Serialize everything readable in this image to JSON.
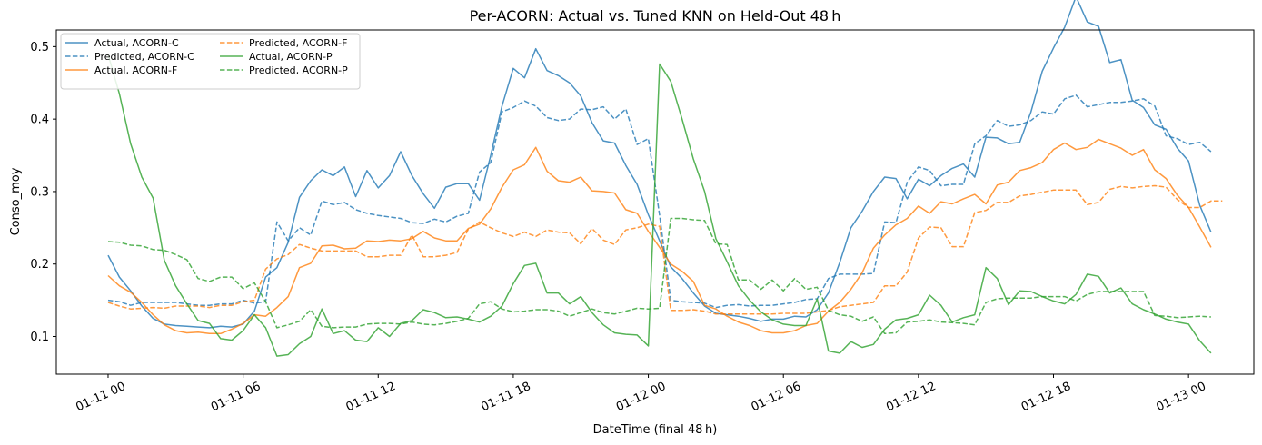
{
  "chart_data": {
    "type": "line",
    "title": "Per-ACORN: Actual vs. Tuned KNN on Held-Out 48 h",
    "xlabel": "DateTime (final 48 h)",
    "ylabel": "Conso_moy",
    "x_unit": "hours",
    "x_range": [
      -2.3,
      50.9
    ],
    "ylim": [
      0.048,
      0.523
    ],
    "x_ticks": [
      {
        "value": 0,
        "label": "01-11 00"
      },
      {
        "value": 6,
        "label": "01-11 06"
      },
      {
        "value": 12,
        "label": "01-11 12"
      },
      {
        "value": 18,
        "label": "01-11 18"
      },
      {
        "value": 24,
        "label": "01-12 00"
      },
      {
        "value": 30,
        "label": "01-12 06"
      },
      {
        "value": 36,
        "label": "01-12 12"
      },
      {
        "value": 42,
        "label": "01-12 18"
      },
      {
        "value": 48,
        "label": "01-13 00"
      }
    ],
    "y_ticks": [
      0.1,
      0.2,
      0.3,
      0.4,
      0.5
    ],
    "y_tick_labels": [
      "0.1",
      "0.2",
      "0.3",
      "0.4",
      "0.5"
    ],
    "grid": false,
    "legend": {
      "position": "top-left",
      "columns": 2
    },
    "x_step_hours": 0.5,
    "series": [
      {
        "name": "Actual, ACORN-C",
        "color": "#1f77b4",
        "style": "solid",
        "values": [
          0.212,
          0.182,
          0.163,
          0.142,
          0.125,
          0.117,
          0.115,
          0.114,
          0.113,
          0.112,
          0.114,
          0.113,
          0.117,
          0.135,
          0.182,
          0.195,
          0.23,
          0.292,
          0.315,
          0.33,
          0.322,
          0.334,
          0.293,
          0.329,
          0.305,
          0.322,
          0.355,
          0.322,
          0.297,
          0.277,
          0.306,
          0.311,
          0.311,
          0.288,
          0.35,
          0.418,
          0.47,
          0.457,
          0.497,
          0.467,
          0.46,
          0.45,
          0.432,
          0.395,
          0.37,
          0.367,
          0.336,
          0.31,
          0.268,
          0.232,
          0.196,
          0.18,
          0.16,
          0.142,
          0.132,
          0.13,
          0.128,
          0.125,
          0.121,
          0.124,
          0.124,
          0.128,
          0.127,
          0.137,
          0.16,
          0.202,
          0.25,
          0.273,
          0.3,
          0.32,
          0.318,
          0.29,
          0.317,
          0.308,
          0.322,
          0.332,
          0.338,
          0.32,
          0.375,
          0.374,
          0.366,
          0.368,
          0.41,
          0.466,
          0.498,
          0.527,
          0.569,
          0.534,
          0.528,
          0.478,
          0.482,
          0.426,
          0.416,
          0.392,
          0.386,
          0.36,
          0.342,
          0.281,
          0.244
        ]
      },
      {
        "name": "Predicted, ACORN-C",
        "color": "#1f77b4",
        "style": "dashed",
        "values": [
          0.15,
          0.148,
          0.143,
          0.147,
          0.147,
          0.147,
          0.147,
          0.145,
          0.143,
          0.143,
          0.145,
          0.145,
          0.15,
          0.146,
          0.148,
          0.258,
          0.232,
          0.25,
          0.24,
          0.287,
          0.282,
          0.285,
          0.275,
          0.27,
          0.267,
          0.265,
          0.263,
          0.257,
          0.256,
          0.262,
          0.258,
          0.266,
          0.27,
          0.327,
          0.34,
          0.41,
          0.416,
          0.425,
          0.418,
          0.402,
          0.398,
          0.4,
          0.414,
          0.413,
          0.417,
          0.4,
          0.414,
          0.365,
          0.373,
          0.267,
          0.15,
          0.148,
          0.147,
          0.146,
          0.14,
          0.143,
          0.144,
          0.142,
          0.143,
          0.143,
          0.145,
          0.147,
          0.151,
          0.152,
          0.18,
          0.186,
          0.186,
          0.186,
          0.187,
          0.258,
          0.257,
          0.313,
          0.334,
          0.329,
          0.308,
          0.31,
          0.31,
          0.366,
          0.377,
          0.398,
          0.39,
          0.392,
          0.398,
          0.41,
          0.407,
          0.428,
          0.433,
          0.417,
          0.42,
          0.423,
          0.423,
          0.425,
          0.428,
          0.418,
          0.377,
          0.373,
          0.365,
          0.368,
          0.355
        ]
      },
      {
        "name": "Actual, ACORN-F",
        "color": "#ff7f0e",
        "style": "solid",
        "values": [
          0.184,
          0.17,
          0.161,
          0.147,
          0.13,
          0.116,
          0.108,
          0.105,
          0.106,
          0.104,
          0.104,
          0.11,
          0.118,
          0.13,
          0.128,
          0.14,
          0.155,
          0.195,
          0.201,
          0.225,
          0.226,
          0.221,
          0.222,
          0.232,
          0.231,
          0.233,
          0.232,
          0.235,
          0.245,
          0.236,
          0.232,
          0.232,
          0.249,
          0.255,
          0.276,
          0.306,
          0.33,
          0.337,
          0.361,
          0.328,
          0.315,
          0.313,
          0.32,
          0.301,
          0.3,
          0.298,
          0.275,
          0.27,
          0.245,
          0.223,
          0.2,
          0.19,
          0.176,
          0.143,
          0.138,
          0.128,
          0.12,
          0.115,
          0.108,
          0.105,
          0.105,
          0.108,
          0.115,
          0.118,
          0.135,
          0.147,
          0.165,
          0.188,
          0.222,
          0.24,
          0.254,
          0.263,
          0.28,
          0.27,
          0.286,
          0.283,
          0.29,
          0.296,
          0.283,
          0.309,
          0.313,
          0.329,
          0.333,
          0.34,
          0.358,
          0.367,
          0.358,
          0.361,
          0.372,
          0.366,
          0.36,
          0.35,
          0.358,
          0.33,
          0.318,
          0.295,
          0.278,
          0.251,
          0.223
        ]
      },
      {
        "name": "Predicted, ACORN-F",
        "color": "#ff7f0e",
        "style": "dashed",
        "values": [
          0.147,
          0.142,
          0.138,
          0.139,
          0.14,
          0.139,
          0.142,
          0.142,
          0.142,
          0.14,
          0.143,
          0.143,
          0.148,
          0.15,
          0.193,
          0.207,
          0.213,
          0.227,
          0.222,
          0.218,
          0.218,
          0.218,
          0.218,
          0.21,
          0.21,
          0.212,
          0.212,
          0.24,
          0.21,
          0.21,
          0.212,
          0.216,
          0.248,
          0.258,
          0.25,
          0.243,
          0.238,
          0.244,
          0.238,
          0.247,
          0.244,
          0.243,
          0.228,
          0.249,
          0.233,
          0.227,
          0.247,
          0.25,
          0.255,
          0.252,
          0.136,
          0.136,
          0.137,
          0.135,
          0.131,
          0.131,
          0.131,
          0.131,
          0.131,
          0.131,
          0.132,
          0.132,
          0.132,
          0.134,
          0.136,
          0.141,
          0.143,
          0.145,
          0.147,
          0.17,
          0.17,
          0.189,
          0.236,
          0.251,
          0.25,
          0.224,
          0.224,
          0.271,
          0.274,
          0.285,
          0.285,
          0.294,
          0.296,
          0.299,
          0.302,
          0.302,
          0.302,
          0.282,
          0.285,
          0.303,
          0.307,
          0.305,
          0.307,
          0.308,
          0.306,
          0.289,
          0.278,
          0.278,
          0.287,
          0.287
        ]
      },
      {
        "name": "Actual, ACORN-P",
        "color": "#2ca02c",
        "style": "solid",
        "values": [
          0.489,
          0.435,
          0.366,
          0.32,
          0.291,
          0.205,
          0.17,
          0.145,
          0.122,
          0.118,
          0.097,
          0.095,
          0.108,
          0.13,
          0.112,
          0.073,
          0.075,
          0.09,
          0.1,
          0.138,
          0.104,
          0.108,
          0.095,
          0.093,
          0.112,
          0.1,
          0.118,
          0.122,
          0.137,
          0.133,
          0.126,
          0.127,
          0.124,
          0.12,
          0.128,
          0.142,
          0.173,
          0.198,
          0.201,
          0.16,
          0.16,
          0.145,
          0.155,
          0.133,
          0.116,
          0.105,
          0.103,
          0.102,
          0.087,
          0.476,
          0.452,
          0.4,
          0.345,
          0.3,
          0.235,
          0.203,
          0.17,
          0.15,
          0.134,
          0.123,
          0.117,
          0.115,
          0.115,
          0.152,
          0.08,
          0.077,
          0.093,
          0.085,
          0.089,
          0.11,
          0.123,
          0.125,
          0.13,
          0.157,
          0.143,
          0.12,
          0.126,
          0.13,
          0.195,
          0.18,
          0.144,
          0.163,
          0.162,
          0.155,
          0.149,
          0.145,
          0.158,
          0.186,
          0.183,
          0.16,
          0.167,
          0.145,
          0.137,
          0.131,
          0.124,
          0.12,
          0.117,
          0.094,
          0.077
        ]
      },
      {
        "name": "Predicted, ACORN-P",
        "color": "#2ca02c",
        "style": "dashed",
        "values": [
          0.231,
          0.23,
          0.226,
          0.225,
          0.22,
          0.219,
          0.213,
          0.206,
          0.18,
          0.176,
          0.182,
          0.182,
          0.166,
          0.174,
          0.148,
          0.112,
          0.116,
          0.121,
          0.137,
          0.114,
          0.112,
          0.113,
          0.113,
          0.117,
          0.118,
          0.118,
          0.117,
          0.12,
          0.117,
          0.116,
          0.118,
          0.121,
          0.125,
          0.145,
          0.148,
          0.138,
          0.134,
          0.135,
          0.137,
          0.137,
          0.135,
          0.128,
          0.133,
          0.138,
          0.133,
          0.131,
          0.135,
          0.139,
          0.138,
          0.139,
          0.263,
          0.263,
          0.261,
          0.26,
          0.228,
          0.227,
          0.178,
          0.178,
          0.165,
          0.178,
          0.163,
          0.18,
          0.165,
          0.168,
          0.136,
          0.13,
          0.128,
          0.121,
          0.127,
          0.104,
          0.105,
          0.12,
          0.121,
          0.123,
          0.12,
          0.119,
          0.118,
          0.116,
          0.147,
          0.152,
          0.153,
          0.153,
          0.153,
          0.155,
          0.155,
          0.155,
          0.149,
          0.158,
          0.162,
          0.162,
          0.162,
          0.162,
          0.162,
          0.129,
          0.128,
          0.126,
          0.127,
          0.128,
          0.127
        ]
      }
    ]
  }
}
